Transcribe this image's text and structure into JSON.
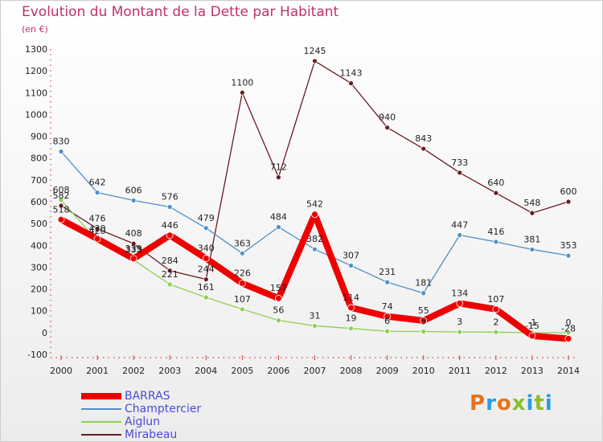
{
  "title": "Evolution du Montant de la Dette par Habitant",
  "subtitle": "(en €)",
  "brand": {
    "text": "Proxiti",
    "letter_colors": [
      "#e8731c",
      "#2a9de0",
      "#e8731c",
      "#8bbf2a",
      "#2a9de0",
      "#8bbf2a",
      "#2a9de0"
    ]
  },
  "chart_data": {
    "type": "line",
    "x": [
      "2000",
      "2001",
      "2002",
      "2003",
      "2004",
      "2005",
      "2006",
      "2007",
      "2008",
      "2009",
      "2010",
      "2011",
      "2012",
      "2013",
      "2014"
    ],
    "ylim": [
      -100,
      1300
    ],
    "yticks": [
      -100,
      0,
      100,
      200,
      300,
      400,
      500,
      600,
      700,
      800,
      900,
      1000,
      1100,
      1200,
      1300
    ],
    "grid": false,
    "legend_position": "bottom-left",
    "series": [
      {
        "name": "Mirabeau",
        "color": "#6b1a22",
        "width": 1.3,
        "marker": 5,
        "values": [
          582,
          476,
          408,
          284,
          244,
          1100,
          712,
          1245,
          1143,
          940,
          843,
          733,
          640,
          548,
          600
        ],
        "labels": [
          "582",
          "476",
          "408",
          "284",
          "244",
          "1100",
          "712",
          "1245",
          "1143",
          "940",
          "843",
          "733",
          "640",
          "548",
          "600"
        ]
      },
      {
        "name": "Aiglun",
        "color": "#8ccf50",
        "width": 1.3,
        "marker": 5,
        "values": [
          608,
          420,
          333,
          221,
          161,
          107,
          56,
          31,
          19,
          6,
          5,
          3,
          2,
          -1,
          0
        ],
        "labels": [
          "608",
          "420",
          "333",
          "221",
          "161",
          "107",
          "56",
          "31",
          "19",
          "6",
          "5",
          "3",
          "2",
          "-1",
          "0"
        ]
      },
      {
        "name": "Champtercier",
        "color": "#4f90c8",
        "width": 1.3,
        "marker": 5,
        "values": [
          830,
          642,
          606,
          576,
          479,
          363,
          484,
          382,
          307,
          231,
          181,
          447,
          416,
          381,
          353
        ],
        "labels": [
          "830",
          "642",
          "606",
          "576",
          "479",
          "363",
          "484",
          "382",
          "307",
          "231",
          "181",
          "447",
          "416",
          "381",
          "353"
        ]
      },
      {
        "name": "BARRAS",
        "color": "#ee0000",
        "width": 8,
        "marker": 7,
        "values": [
          518,
          430,
          339,
          446,
          340,
          226,
          157,
          542,
          114,
          74,
          55,
          134,
          107,
          -15,
          -28
        ],
        "labels": [
          "518",
          "430",
          "339",
          "446",
          "340",
          "226",
          "157",
          "542",
          "114",
          "74",
          "55",
          "134",
          "107",
          "-15",
          "-28"
        ]
      }
    ],
    "legend": [
      {
        "name": "BARRAS",
        "color": "#ee0000",
        "width": 8
      },
      {
        "name": "Champtercier",
        "color": "#4f90c8",
        "width": 1.5
      },
      {
        "name": "Aiglun",
        "color": "#8ccf50",
        "width": 1.5
      },
      {
        "name": "Mirabeau",
        "color": "#6b1a22",
        "width": 1.5
      }
    ]
  }
}
